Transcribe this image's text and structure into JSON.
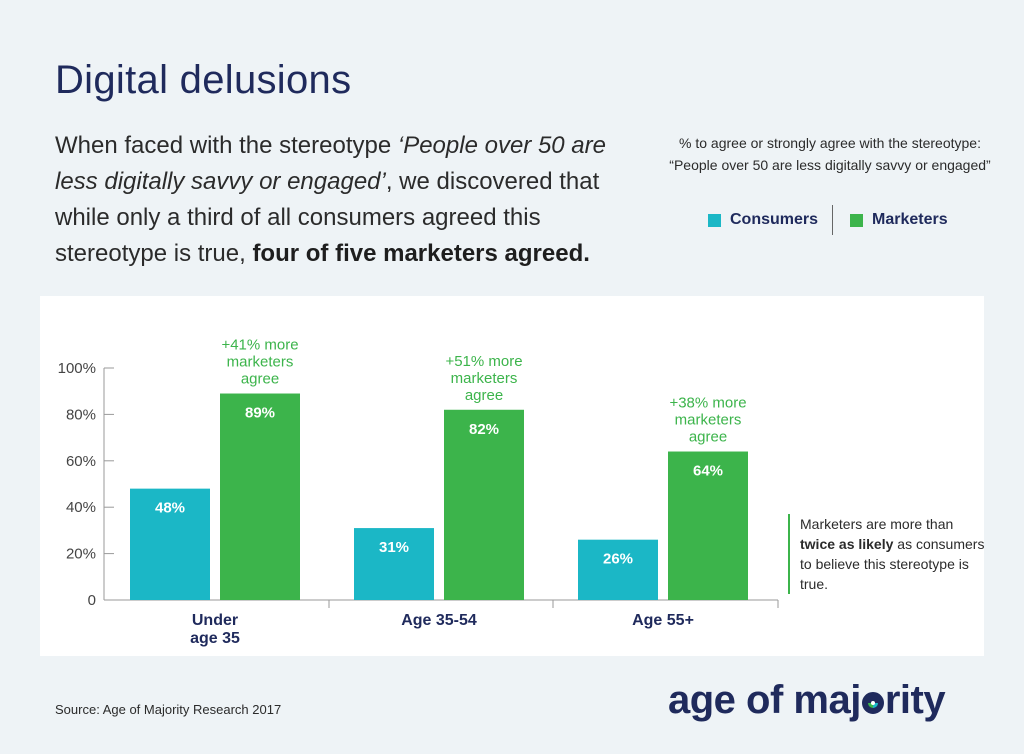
{
  "title": "Digital delusions",
  "intro": {
    "part1": "When faced with the stereotype ",
    "quote": "‘People over 50 are less digitally savvy or engaged’",
    "part2": ", we discovered that while only a third of all consumers agreed this stereotype is true, ",
    "bold": "four of five marketers agreed."
  },
  "legend": {
    "caption": "% to agree or strongly agree with the stereotype: “People over 50 are less digitally savvy or engaged”",
    "items": [
      {
        "label": "Consumers",
        "color": "#1bb7c6"
      },
      {
        "label": "Marketers",
        "color": "#3cb44b"
      }
    ]
  },
  "chart_data": {
    "type": "bar",
    "categories": [
      "Under age 35",
      "Age 35-54",
      "Age 55+"
    ],
    "category_lines": [
      [
        "Under",
        "age 35"
      ],
      [
        "Age 35-54"
      ],
      [
        "Age 55+"
      ]
    ],
    "series": [
      {
        "name": "Consumers",
        "values": [
          48,
          31,
          26
        ],
        "labels": [
          "48%",
          "31%",
          "26%"
        ],
        "color": "#1bb7c6"
      },
      {
        "name": "Marketers",
        "values": [
          89,
          82,
          64
        ],
        "labels": [
          "89%",
          "82%",
          "64%"
        ],
        "color": "#3cb44b"
      }
    ],
    "annotations": [
      [
        "+41% more",
        "marketers",
        "agree"
      ],
      [
        "+51% more",
        "marketers",
        "agree"
      ],
      [
        "+38% more",
        "marketers",
        "agree"
      ]
    ],
    "yticks": [
      "100%",
      "80%",
      "60%",
      "40%",
      "20%",
      "0"
    ],
    "ylim": [
      0,
      100
    ],
    "xlabel": "",
    "ylabel": "",
    "grid": false
  },
  "note": {
    "part1": "Marketers are more than ",
    "bold": "twice as likely",
    "part2": " as consumers to believe this stereotype is true."
  },
  "source": "Source: Age of Majority Research 2017",
  "logo": {
    "text_before": "age of maj",
    "text_after": "rity",
    "alt": "age of majority"
  }
}
